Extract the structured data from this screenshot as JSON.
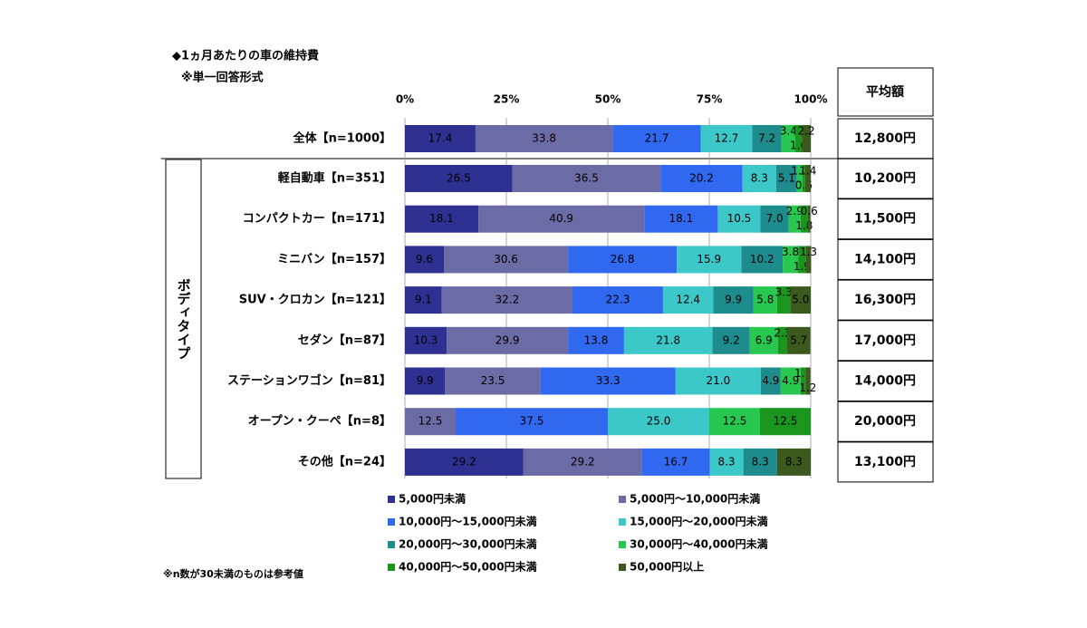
{
  "chart_data": {
    "type": "stacked_barh",
    "title": "◆1ヵ月あたりの車の維持費",
    "subtitle": "※単一回答形式",
    "group_label": "ボディタイプ",
    "footnote": "※n数が30未満のものは参考値",
    "average_header": "平均額",
    "categories": [
      "全体【n=1000】",
      "軽自動車【n=351】",
      "コンパクトカー【n=171】",
      "ミニバン【n=157】",
      "SUV・クロカン【n=121】",
      "セダン【n=87】",
      "ステーションワゴン【n=81】",
      "オープン・クーペ【n=8】",
      "その他【n=24】"
    ],
    "averages": [
      "12,800円",
      "10,200円",
      "11,500円",
      "14,100円",
      "16,300円",
      "17,000円",
      "14,000円",
      "20,000円",
      "13,100円"
    ],
    "xlim": [
      0,
      100
    ],
    "xticks": [
      {
        "value": 0,
        "label": "0%"
      },
      {
        "value": 25,
        "label": "25%"
      },
      {
        "value": 50,
        "label": "50%"
      },
      {
        "value": 75,
        "label": "75%"
      },
      {
        "value": 100,
        "label": "100%"
      }
    ],
    "grid": true,
    "series": [
      {
        "name": "5,000円未満",
        "color": "#2e3192",
        "values": [
          17.4,
          26.5,
          18.1,
          9.6,
          9.1,
          10.3,
          9.9,
          0,
          29.2
        ],
        "value_labels": [
          "17.4",
          "26.5",
          "18.1",
          "9.6",
          "9.1",
          "10.3",
          "9.9",
          null,
          "29.2"
        ]
      },
      {
        "name": "5,000円～10,000円未満",
        "color": "#6b6ba6",
        "values": [
          33.8,
          36.5,
          40.9,
          30.6,
          32.2,
          29.9,
          23.5,
          12.5,
          29.2
        ],
        "value_labels": [
          "33.8",
          "36.5",
          "40.9",
          "30.6",
          "32.2",
          "29.9",
          "23.5",
          "12.5",
          "29.2"
        ]
      },
      {
        "name": "10,000円～15,000円未満",
        "color": "#3068f0",
        "values": [
          21.7,
          20.2,
          18.1,
          26.8,
          22.3,
          13.8,
          33.3,
          37.5,
          16.7
        ],
        "value_labels": [
          "21.7",
          "20.2",
          "18.1",
          "26.8",
          "22.3",
          "13.8",
          "33.3",
          "37.5",
          "16.7"
        ]
      },
      {
        "name": "15,000円～20,000円未満",
        "color": "#3cc8c8",
        "values": [
          12.7,
          8.3,
          10.5,
          15.9,
          12.4,
          21.8,
          21.0,
          25.0,
          8.3
        ],
        "value_labels": [
          "12.7",
          "8.3",
          "10.5",
          "15.9",
          "12.4",
          "21.8",
          "21.0",
          "25.0",
          "8.3"
        ]
      },
      {
        "name": "20,000円～30,000円未満",
        "color": "#1e8c8c",
        "values": [
          7.2,
          5.1,
          7.0,
          10.2,
          9.9,
          9.2,
          4.9,
          0,
          8.3
        ],
        "value_labels": [
          "7.2",
          "5.1",
          "7.0",
          "10.2",
          "9.9",
          "9.2",
          "4.9",
          null,
          "8.3"
        ]
      },
      {
        "name": "30,000円～40,000円未満",
        "color": "#28c850",
        "values": [
          3.4,
          1.4,
          2.9,
          3.8,
          5.8,
          6.9,
          4.9,
          12.5,
          0
        ],
        "value_labels": [
          "3.4",
          "1.4",
          "2.9",
          "3.8",
          "5.8",
          "6.9",
          "4.9",
          "12.5",
          null
        ]
      },
      {
        "name": "40,000円～50,000円未満",
        "color": "#1a961e",
        "values": [
          1.6,
          0.6,
          1.8,
          1.9,
          3.3,
          2.3,
          1.2,
          12.5,
          0
        ],
        "value_labels": [
          "1.6",
          "0.6",
          "1.8",
          "1.9",
          "3.3",
          "2.3",
          "1.2",
          "12.5",
          null
        ]
      },
      {
        "name": "50,000円以上",
        "color": "#3c5a1e",
        "values": [
          2.2,
          1.4,
          0.6,
          1.3,
          5.0,
          5.7,
          1.2,
          0,
          8.3
        ],
        "value_labels": [
          "2.2",
          "1.4",
          "0.6",
          "1.3",
          "5.0",
          "5.7",
          "1.2",
          null,
          "8.3"
        ]
      }
    ]
  }
}
